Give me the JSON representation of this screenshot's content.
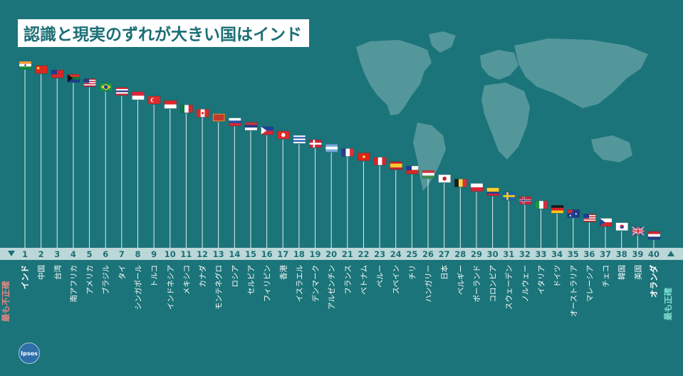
{
  "title": "認識と現実のずれが大きい国はインド",
  "logo_text": "Ipsos",
  "ends": {
    "least_accurate": "最も不正確",
    "most_accurate": "最も正確"
  },
  "chart_data": {
    "type": "ranking",
    "title": "認識と現実のずれが大きい国はインド",
    "least_accurate_label": "最も不正確",
    "most_accurate_label": "最も正確",
    "ranks": [
      1,
      2,
      3,
      4,
      5,
      6,
      7,
      8,
      9,
      10,
      11,
      12,
      13,
      14,
      15,
      16,
      17,
      18,
      19,
      20,
      21,
      22,
      23,
      24,
      25,
      26,
      27,
      28,
      29,
      30,
      31,
      32,
      33,
      34,
      35,
      36,
      37,
      38,
      39,
      40
    ],
    "countries": [
      "インド",
      "中国",
      "台湾",
      "南アフリカ",
      "アメリカ",
      "ブラジル",
      "タイ",
      "シンガポール",
      "トルコ",
      "インドネシア",
      "メキシコ",
      "カナダ",
      "モンテネグロ",
      "ロシア",
      "セルビア",
      "フィリピン",
      "香港",
      "イスラエル",
      "デンマーク",
      "アルゼンチン",
      "フランス",
      "ベトナム",
      "ペルー",
      "スペイン",
      "チリ",
      "ハンガリー",
      "日本",
      "ベルギー",
      "ポーランド",
      "コロンビア",
      "スウェーデン",
      "ノルウェー",
      "イタリア",
      "ドイツ",
      "オーストラリア",
      "マレーシア",
      "チェコ",
      "韓国",
      "英国",
      "オランダ"
    ],
    "highlight": [
      "インド",
      "オランダ"
    ],
    "colors": {
      "background": "#1b7479",
      "band": "#bcd7d8",
      "pole": "#e6eeee",
      "least_accurate": "#e8867f",
      "most_accurate": "#7fe0d2",
      "label": "#ffffff"
    },
    "flag_icons": [
      "india-flag",
      "china-flag",
      "taiwan-flag",
      "south-africa-flag",
      "usa-flag",
      "brazil-flag",
      "thailand-flag",
      "singapore-flag",
      "turkey-flag",
      "indonesia-flag",
      "mexico-flag",
      "canada-flag",
      "montenegro-flag",
      "russia-flag",
      "serbia-flag",
      "philippines-flag",
      "hong-kong-flag",
      "israel-flag",
      "denmark-flag",
      "argentina-flag",
      "france-flag",
      "vietnam-flag",
      "peru-flag",
      "spain-flag",
      "chile-flag",
      "hungary-flag",
      "japan-flag",
      "belgium-flag",
      "poland-flag",
      "colombia-flag",
      "sweden-flag",
      "norway-flag",
      "italy-flag",
      "germany-flag",
      "australia-flag",
      "malaysia-flag",
      "czech-flag",
      "korea-flag",
      "uk-flag",
      "netherlands-flag"
    ]
  }
}
